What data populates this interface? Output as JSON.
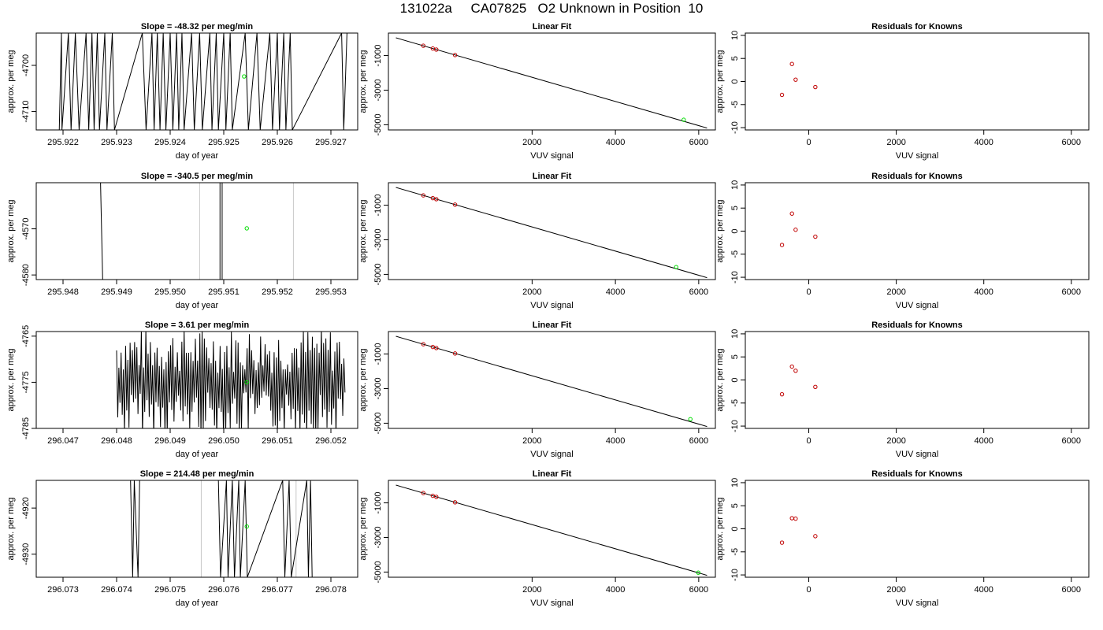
{
  "title": "131022a     CA07825   O2 Unknown in Position  10",
  "colors": {
    "axis": "#000000",
    "trace": "#000000",
    "trace_light": "#c8c8c8",
    "unknown_point": "#00dd00",
    "known_point": "#c00000"
  },
  "chart_data": [
    {
      "type": "line",
      "row": 1,
      "panel": "time",
      "title": "Slope =  -48.32  per meg/min",
      "xlabel": "day of year",
      "ylabel": "approx. per meg",
      "xlim": [
        295.9215,
        295.9275
      ],
      "ylim": [
        -4714,
        -4693
      ],
      "xticks": [
        295.922,
        295.923,
        295.924,
        295.925,
        295.926,
        295.927
      ],
      "xtick_labels": [
        "295.922",
        "295.923",
        "295.924",
        "295.925",
        "295.926",
        "295.927"
      ],
      "yticks": [
        -4710,
        -4700
      ],
      "trace_x": [
        295.92193,
        295.92197,
        295.92198,
        295.9221,
        295.92215,
        295.92223,
        295.9223,
        295.92243,
        295.92248,
        295.92254,
        295.92258,
        295.92264,
        295.92268,
        295.92278,
        295.92282,
        295.92292,
        295.92296,
        295.92348,
        295.92355,
        295.92366,
        295.9237,
        295.92376,
        295.92381,
        295.92387,
        295.92392,
        295.924,
        295.92405,
        295.92412,
        295.92416,
        295.92422,
        295.92426,
        295.9244,
        295.92445,
        295.92455,
        295.9246,
        295.92474,
        295.92478,
        295.92486,
        295.9249,
        295.925,
        295.92504,
        295.92512,
        295.92516,
        295.9254,
        295.92546,
        295.92562,
        295.92568,
        295.92586,
        295.92591,
        295.926,
        295.92604,
        295.92612,
        295.92616,
        295.92624,
        295.92628,
        295.9272,
        295.92724,
        295.9273
      ],
      "trace_y": [
        -4714,
        -4693,
        -4714,
        -4693,
        -4714,
        -4693,
        -4714,
        -4693,
        -4714,
        -4693,
        -4714,
        -4693,
        -4714,
        -4693,
        -4714,
        -4693,
        -4714,
        -4693,
        -4714,
        -4693,
        -4714,
        -4693,
        -4714,
        -4693,
        -4714,
        -4693,
        -4714,
        -4693,
        -4714,
        -4693,
        -4714,
        -4693,
        -4714,
        -4693,
        -4714,
        -4693,
        -4714,
        -4693,
        -4714,
        -4693,
        -4714,
        -4693,
        -4714,
        -4693,
        -4714,
        -4693,
        -4714,
        -4693,
        -4714,
        -4693,
        -4714,
        -4693,
        -4714,
        -4693,
        -4714,
        -4693,
        -4714,
        -4693
      ],
      "unknown_point": {
        "x": 295.92538,
        "y": -4702.4
      }
    },
    {
      "type": "scatter",
      "row": 1,
      "panel": "fit",
      "title": "Linear Fit",
      "xlabel": "VUV signal",
      "ylabel": "approx. per meg",
      "xlim": [
        -1450,
        6400
      ],
      "ylim": [
        -5300,
        300
      ],
      "xticks": [
        2000,
        4000,
        6000
      ],
      "xtick_labels": [
        "2000",
        "4000",
        "6000"
      ],
      "yticks": [
        -5000,
        -3000,
        -1000
      ],
      "ytick_labels": [
        "-5000",
        "-3000",
        "-1000"
      ],
      "fit_line": [
        [
          -1270,
          26.1
        ],
        [
          6200,
          -5190.6
        ]
      ],
      "knowns": [
        [
          -612,
          -433.3
        ],
        [
          -384,
          -593.5
        ],
        [
          -300,
          -652.5
        ],
        [
          150,
          -968.7
        ]
      ],
      "unknown": [
        5640,
        -4714.3
      ]
    },
    {
      "type": "scatter",
      "row": 1,
      "panel": "residuals",
      "title": "Residuals for Knowns",
      "xlabel": "VUV signal",
      "ylabel": "approx. per meg",
      "xlim": [
        -1450,
        6400
      ],
      "ylim": [
        -10.5,
        10.5
      ],
      "xticks": [
        0,
        2000,
        4000,
        6000
      ],
      "xtick_labels": [
        "0",
        "2000",
        "4000",
        "6000"
      ],
      "yticks": [
        -10,
        -5,
        0,
        5,
        10
      ],
      "ytick_labels": [
        "-10",
        "-5",
        "0",
        "5",
        "10"
      ],
      "points": [
        [
          -612,
          -2.9
        ],
        [
          -384,
          3.8
        ],
        [
          -300,
          0.4
        ],
        [
          150,
          -1.2
        ]
      ]
    },
    {
      "type": "line",
      "row": 2,
      "panel": "time",
      "title": "Slope =  -340.5  per meg/min",
      "xlabel": "day of year",
      "ylabel": "approx. per meg",
      "xlim": [
        295.9475,
        295.9535
      ],
      "ylim": [
        -4581,
        -4560
      ],
      "xticks": [
        295.948,
        295.949,
        295.95,
        295.951,
        295.952,
        295.953
      ],
      "xtick_labels": [
        "295.948",
        "295.949",
        "295.950",
        "295.951",
        "295.952",
        "295.953"
      ],
      "yticks": [
        -4580,
        -4570
      ],
      "trace_x": [
        295.9487,
        295.94874
      ],
      "trace_y": [
        -4560,
        -4581
      ],
      "trace2_x": [
        295.95093,
        295.95093,
        295.95097,
        295.95097
      ],
      "trace2_y": [
        -4581,
        -4560,
        -4560,
        -4581
      ],
      "light_x": [
        295.95055,
        295.9523
      ],
      "unknown_point": {
        "x": 295.95143,
        "y": -4569.9
      }
    },
    {
      "type": "scatter",
      "row": 2,
      "panel": "fit",
      "title": "Linear Fit",
      "xlabel": "VUV signal",
      "ylabel": "approx. per meg",
      "xlim": [
        -1450,
        6400
      ],
      "ylim": [
        -5300,
        300
      ],
      "xticks": [
        2000,
        4000,
        6000
      ],
      "xtick_labels": [
        "2000",
        "4000",
        "6000"
      ],
      "yticks": [
        -5000,
        -3000,
        -1000
      ],
      "ytick_labels": [
        "-5000",
        "-3000",
        "-1000"
      ],
      "fit_line": [
        [
          -1270,
          26.1
        ],
        [
          6200,
          -5190.6
        ]
      ],
      "knowns": [
        [
          -612,
          -433.3
        ],
        [
          -384,
          -593.5
        ],
        [
          -300,
          -652.5
        ],
        [
          150,
          -968.7
        ]
      ],
      "unknown": [
        5460,
        -4580.0
      ]
    },
    {
      "type": "scatter",
      "row": 2,
      "panel": "residuals",
      "title": "Residuals for Knowns",
      "xlabel": "VUV signal",
      "ylabel": "approx. per meg",
      "xlim": [
        -1450,
        6400
      ],
      "ylim": [
        -10.5,
        10.5
      ],
      "xticks": [
        0,
        2000,
        4000,
        6000
      ],
      "xtick_labels": [
        "0",
        "2000",
        "4000",
        "6000"
      ],
      "yticks": [
        -10,
        -5,
        0,
        5,
        10
      ],
      "ytick_labels": [
        "-10",
        "-5",
        "0",
        "5",
        "10"
      ],
      "points": [
        [
          -612,
          -3.0
        ],
        [
          -384,
          3.8
        ],
        [
          -300,
          0.3
        ],
        [
          150,
          -1.2
        ]
      ]
    },
    {
      "type": "line",
      "row": 3,
      "panel": "time",
      "title": "Slope =  3.61  per meg/min",
      "xlabel": "day of year",
      "ylabel": "approx. per meg",
      "xlim": [
        296.0465,
        296.0525
      ],
      "ylim": [
        -4785,
        -4764
      ],
      "xticks": [
        296.047,
        296.048,
        296.049,
        296.05,
        296.051,
        296.052
      ],
      "xtick_labels": [
        "296.047",
        "296.048",
        "296.049",
        "296.050",
        "296.051",
        "296.052"
      ],
      "yticks": [
        -4785,
        -4775,
        -4765
      ],
      "noise_start": 296.048,
      "noise_end": 296.05228,
      "noise_step": 2.1e-05,
      "unknown_point": {
        "x": 296.05043,
        "y": -4775.0
      }
    },
    {
      "type": "scatter",
      "row": 3,
      "panel": "fit",
      "title": "Linear Fit",
      "xlabel": "VUV signal",
      "ylabel": "approx. per meg",
      "xlim": [
        -1450,
        6400
      ],
      "ylim": [
        -5300,
        300
      ],
      "xticks": [
        2000,
        4000,
        6000
      ],
      "xtick_labels": [
        "2000",
        "4000",
        "6000"
      ],
      "yticks": [
        -5000,
        -3000,
        -1000
      ],
      "ytick_labels": [
        "-5000",
        "-3000",
        "-1000"
      ],
      "fit_line": [
        [
          -1270,
          26.1
        ],
        [
          6200,
          -5190.6
        ]
      ],
      "knowns": [
        [
          -612,
          -433.3
        ],
        [
          -384,
          -593.5
        ],
        [
          -300,
          -652.5
        ],
        [
          150,
          -968.7
        ]
      ],
      "unknown": [
        5800,
        -4767.0
      ]
    },
    {
      "type": "scatter",
      "row": 3,
      "panel": "residuals",
      "title": "Residuals for Knowns",
      "xlabel": "VUV signal",
      "ylabel": "approx. per meg",
      "xlim": [
        -1450,
        6400
      ],
      "ylim": [
        -10.5,
        10.5
      ],
      "xticks": [
        0,
        2000,
        4000,
        6000
      ],
      "xtick_labels": [
        "0",
        "2000",
        "4000",
        "6000"
      ],
      "yticks": [
        -10,
        -5,
        0,
        5,
        10
      ],
      "ytick_labels": [
        "-10",
        "-5",
        "0",
        "5",
        "10"
      ],
      "points": [
        [
          -612,
          -3.1
        ],
        [
          -384,
          2.9
        ],
        [
          -300,
          2.0
        ],
        [
          150,
          -1.5
        ]
      ]
    },
    {
      "type": "line",
      "row": 4,
      "panel": "time",
      "title": "Slope =  214.48  per meg/min",
      "xlabel": "day of year",
      "ylabel": "approx. per meg",
      "xlim": [
        296.0725,
        296.0785
      ],
      "ylim": [
        -4935,
        -4914
      ],
      "xticks": [
        296.073,
        296.074,
        296.075,
        296.076,
        296.077,
        296.078
      ],
      "xtick_labels": [
        "296.073",
        "296.074",
        "296.075",
        "296.076",
        "296.077",
        "296.078"
      ],
      "yticks": [
        -4930,
        -4920
      ],
      "trace_x": [
        296.07426,
        296.0743,
        296.07433,
        296.0744,
        296.07443,
        296.0759,
        296.07594,
        296.07605,
        296.07608,
        296.07616,
        296.0762,
        296.07628,
        296.07631,
        296.0764,
        296.07644,
        296.0771,
        296.07714,
        296.07722,
        296.07726,
        296.07755,
        296.07758,
        296.07762,
        296.07765
      ],
      "trace_y": [
        -4914,
        -4935,
        -4914,
        -4935,
        -4914,
        -4914,
        -4935,
        -4914,
        -4935,
        -4914,
        -4935,
        -4914,
        -4935,
        -4914,
        -4935,
        -4914,
        -4935,
        -4914,
        -4935,
        -4914,
        -4935,
        -4914,
        -4935
      ],
      "light_x": [
        296.07558,
        296.07735
      ],
      "unknown_point": {
        "x": 296.07643,
        "y": -4924.0
      }
    },
    {
      "type": "scatter",
      "row": 4,
      "panel": "fit",
      "title": "Linear Fit",
      "xlabel": "VUV signal",
      "ylabel": "approx. per meg",
      "xlim": [
        -1450,
        6400
      ],
      "ylim": [
        -5300,
        300
      ],
      "xticks": [
        2000,
        4000,
        6000
      ],
      "xtick_labels": [
        "2000",
        "4000",
        "6000"
      ],
      "yticks": [
        -5000,
        -3000,
        -1000
      ],
      "ytick_labels": [
        "-5000",
        "-3000",
        "-1000"
      ],
      "fit_line": [
        [
          -1270,
          26.1
        ],
        [
          6200,
          -5190.6
        ]
      ],
      "knowns": [
        [
          -612,
          -433.3
        ],
        [
          -384,
          -593.5
        ],
        [
          -300,
          -652.5
        ],
        [
          150,
          -968.7
        ]
      ],
      "unknown": [
        5990,
        -5035.0
      ]
    },
    {
      "type": "scatter",
      "row": 4,
      "panel": "residuals",
      "title": "Residuals for Knowns",
      "xlabel": "VUV signal",
      "ylabel": "approx. per meg",
      "xlim": [
        -1450,
        6400
      ],
      "ylim": [
        -10.5,
        10.5
      ],
      "xticks": [
        0,
        2000,
        4000,
        6000
      ],
      "xtick_labels": [
        "0",
        "2000",
        "4000",
        "6000"
      ],
      "yticks": [
        -10,
        -5,
        0,
        5,
        10
      ],
      "ytick_labels": [
        "-10",
        "-5",
        "0",
        "5",
        "10"
      ],
      "points": [
        [
          -612,
          -3.0
        ],
        [
          -384,
          2.3
        ],
        [
          -300,
          2.2
        ],
        [
          150,
          -1.6
        ]
      ]
    }
  ]
}
